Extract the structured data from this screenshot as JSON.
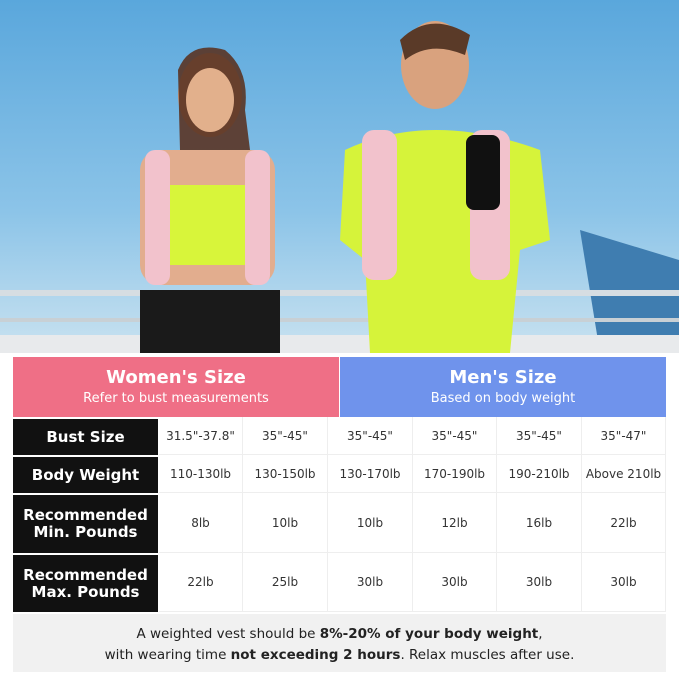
{
  "header": {
    "women": {
      "title": "Women's Size",
      "subtitle": "Refer to bust measurements",
      "color": "#ef6f86"
    },
    "men": {
      "title": "Men's Size",
      "subtitle": "Based on body weight",
      "color": "#6f93ec"
    }
  },
  "rows": [
    {
      "label": "Bust Size",
      "values": [
        "31.5\"-37.8\"",
        "35\"-45\"",
        "35\"-45\"",
        "35\"-45\"",
        "35\"-45\"",
        "35\"-47\""
      ]
    },
    {
      "label": "Body Weight",
      "values": [
        "110-130lb",
        "130-150lb",
        "130-170lb",
        "170-190lb",
        "190-210lb",
        "Above 210lb"
      ]
    },
    {
      "label": "Recommended Min. Pounds",
      "values": [
        "8lb",
        "10lb",
        "10lb",
        "12lb",
        "16lb",
        "22lb"
      ]
    },
    {
      "label": "Recommended Max. Pounds",
      "values": [
        "22lb",
        "25lb",
        "30lb",
        "30lb",
        "30lb",
        "30lb"
      ]
    }
  ],
  "footer": {
    "line1_pre": "A weighted vest should be ",
    "line1_bold": "8%-20% of your body weight",
    "line1_post": ",",
    "line2_pre": "with wearing time ",
    "line2_bold": "not exceeding 2 hours",
    "line2_post": ". Relax muscles after use."
  }
}
